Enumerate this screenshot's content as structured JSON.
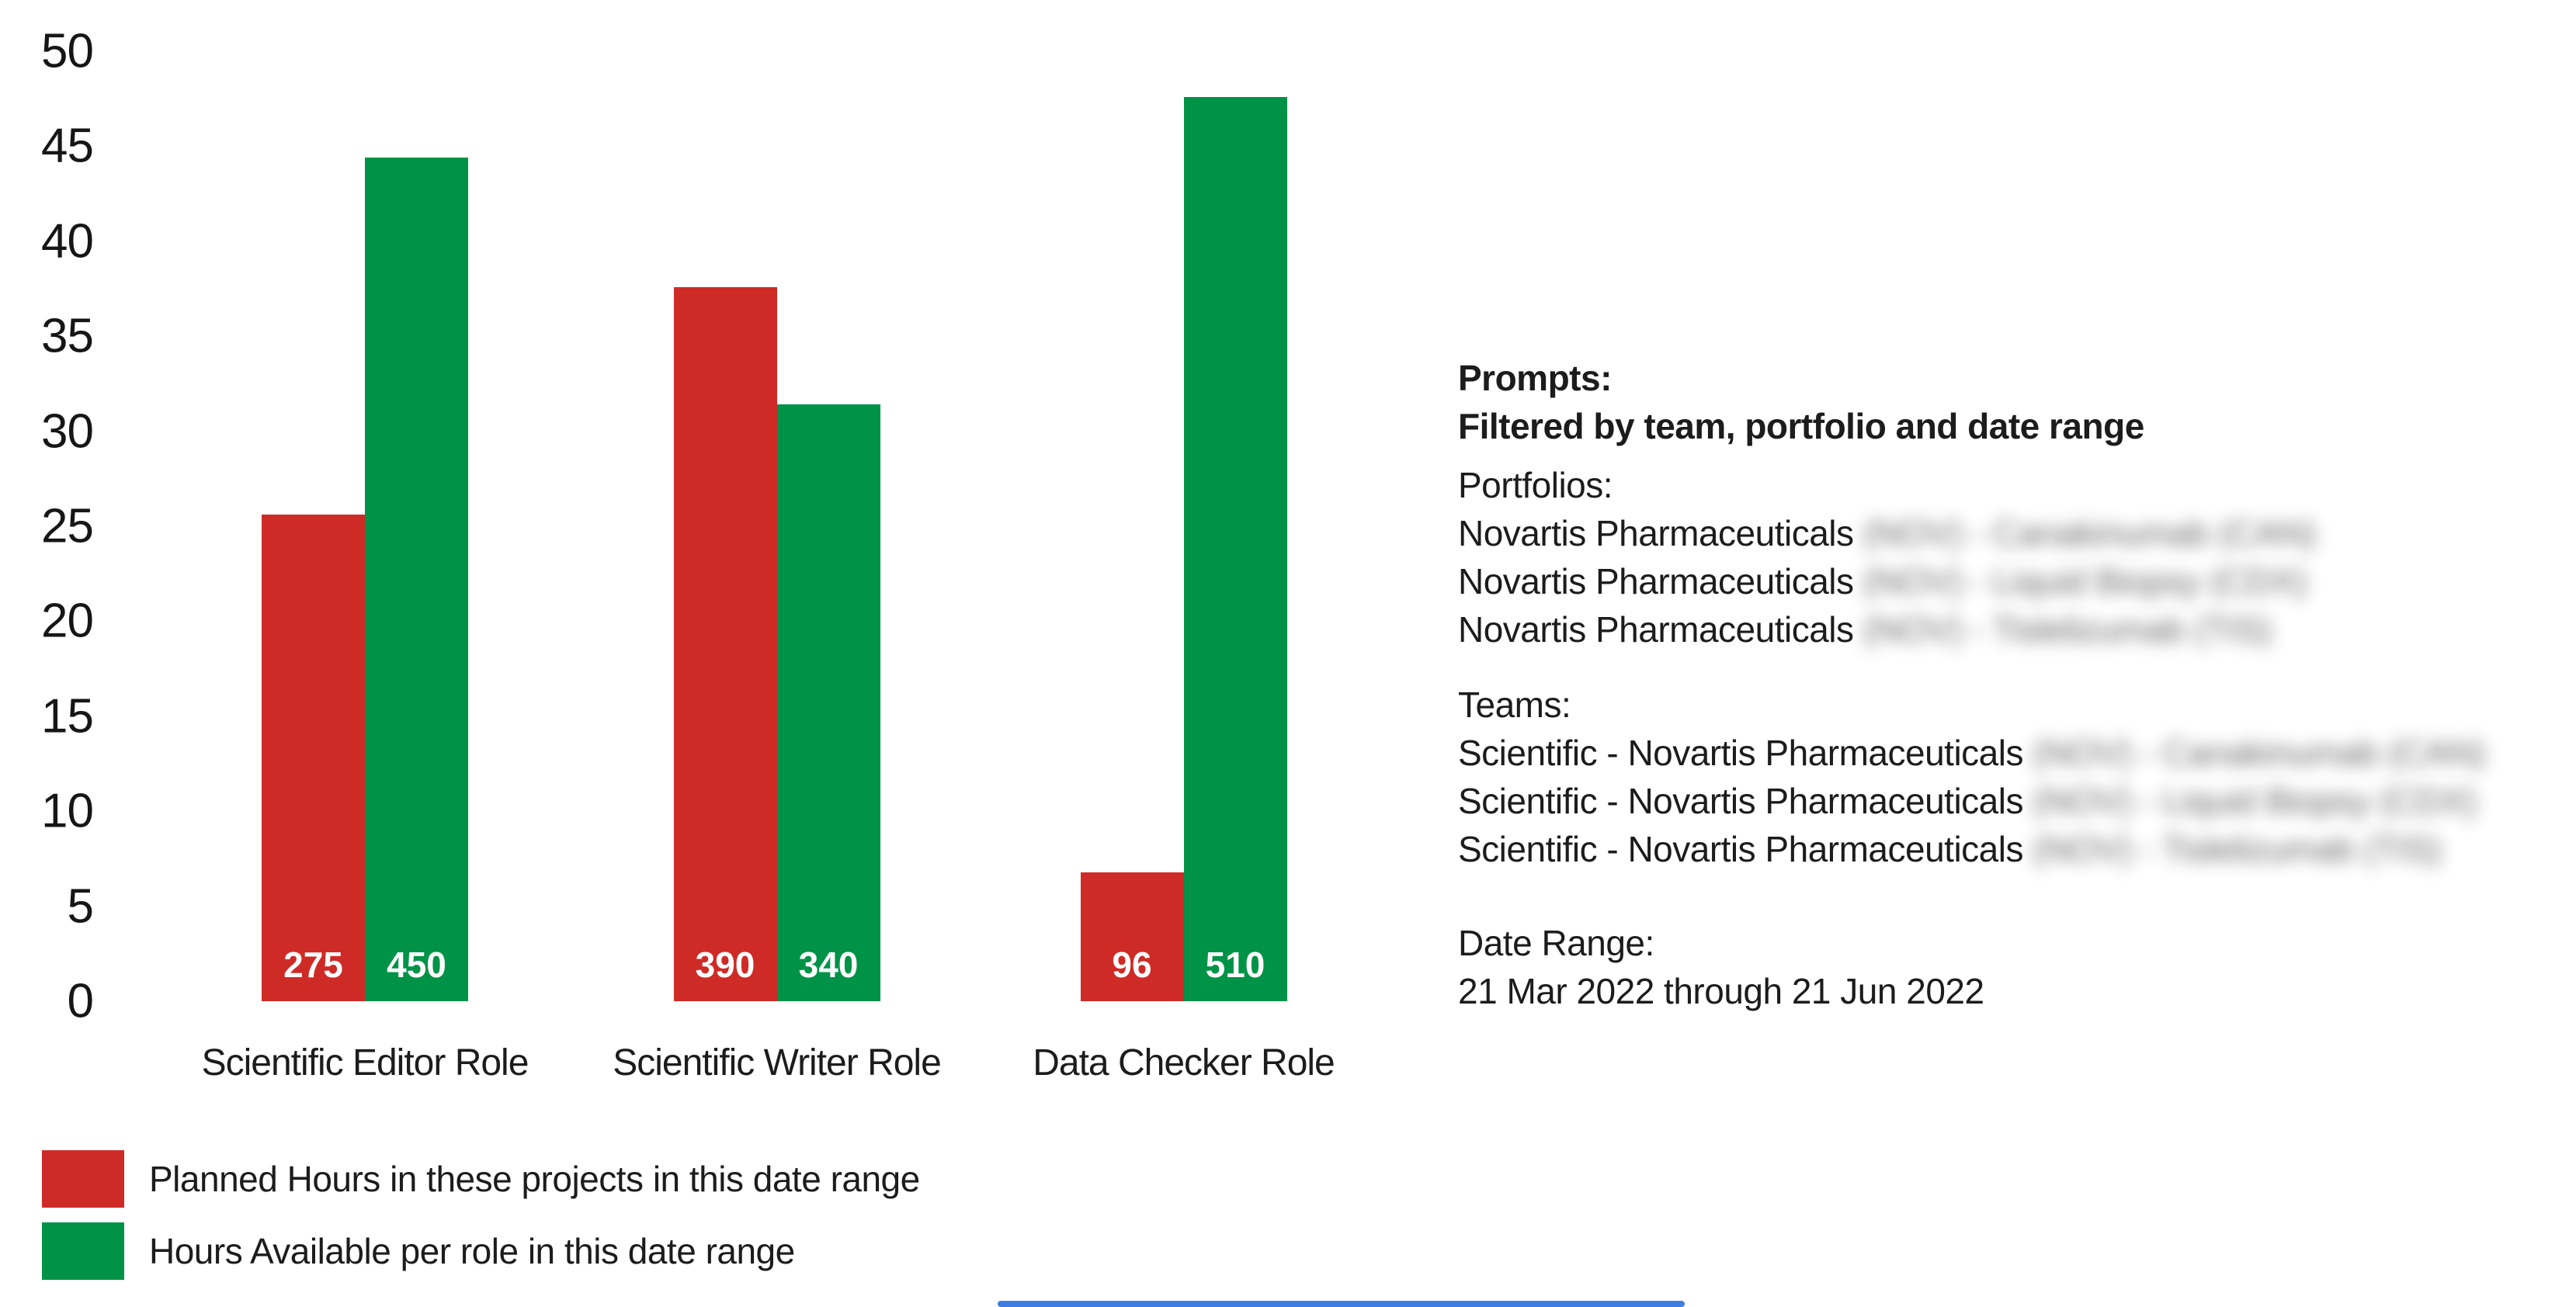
{
  "colors": {
    "planned": "#ce2b27",
    "available": "#009347",
    "scrollbar": "#3e7ee2",
    "text": "#1c1c1c"
  },
  "chart_data": {
    "type": "bar",
    "title": "",
    "xlabel": "",
    "ylabel": "",
    "categories": [
      "Scientific Editor Role",
      "Scientific Writer Role",
      "Data Checker Role"
    ],
    "series": [
      {
        "name": "Planned Hours in these projects in this date range",
        "color": "#ce2b27",
        "values": [
          275,
          390,
          96
        ],
        "bar_heights_axis_units": [
          25.6,
          37.6,
          6.8
        ]
      },
      {
        "name": "Hours Available per role in this date range",
        "color": "#009347",
        "values": [
          450,
          340,
          510
        ],
        "bar_heights_axis_units": [
          44.4,
          31.4,
          47.6
        ]
      }
    ],
    "ylim": [
      0,
      50
    ],
    "yticks": [
      0,
      5,
      10,
      15,
      20,
      25,
      30,
      35,
      40,
      45,
      50
    ],
    "grid": false,
    "legend_position": "bottom-left",
    "bar_value_labels_shown": true
  },
  "side_panel": {
    "prompts_title": "Prompts:",
    "prompts_subtitle": "Filtered by team, portfolio and date range",
    "portfolios_label": "Portfolios:",
    "portfolio_prefix": "Novartis Pharmaceuticals",
    "portfolios_redacted": [
      "(NOV) - Canakinumab (CAN)",
      "(NOV) - Liquid Biopsy (CDX)",
      "(NOV) - Tislelizumab (TIS)"
    ],
    "teams_label": "Teams:",
    "team_prefix": "Scientific - Novartis Pharmaceuticals",
    "teams_redacted": [
      "(NOV) - Canakinumab (CAN)",
      "(NOV) - Liquid Biopsy (CDX)",
      "(NOV) - Tislelizumab (TIS)"
    ],
    "date_range_label": "Date Range:",
    "date_range_value": "21 Mar 2022 through 21 Jun 2022"
  }
}
